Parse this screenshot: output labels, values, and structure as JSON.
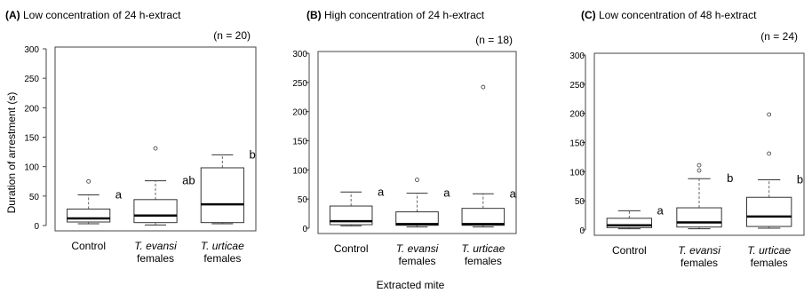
{
  "figure": {
    "ylabel": "Duration of arrestment (s)",
    "xlabel": "Extracted mite"
  },
  "chart_data": [
    {
      "type": "box",
      "panel_letter": "(A)",
      "title": "Low concentration of 24 h-extract",
      "n_label": "(n = 20)",
      "ylim": [
        0,
        300
      ],
      "yticks": [
        0,
        50,
        100,
        150,
        200,
        250,
        300
      ],
      "categories": [
        {
          "lines": [
            "Control"
          ],
          "italic": false
        },
        {
          "lines": [
            "T. evansi",
            "females"
          ],
          "italic": true
        },
        {
          "lines": [
            "T. urticae",
            "females"
          ],
          "italic": true
        }
      ],
      "boxes": [
        {
          "min": 3,
          "q1": 6,
          "median": 12,
          "q3": 28,
          "max": 52,
          "outliers": [
            75
          ],
          "letter": "a"
        },
        {
          "min": 1,
          "q1": 5,
          "median": 17,
          "q3": 44,
          "max": 76,
          "outliers": [
            131
          ],
          "letter": "ab"
        },
        {
          "min": 3,
          "q1": 5,
          "median": 36,
          "q3": 98,
          "max": 120,
          "outliers": [],
          "letter": "b"
        }
      ]
    },
    {
      "type": "box",
      "panel_letter": "(B)",
      "title": "High concentration of 24 h-extract",
      "n_label": "(n = 18)",
      "ylim": [
        0,
        300
      ],
      "yticks": [
        0,
        50,
        100,
        150,
        200,
        250,
        300
      ],
      "categories": [
        {
          "lines": [
            "Control"
          ],
          "italic": false
        },
        {
          "lines": [
            "T. evansi",
            "females"
          ],
          "italic": true
        },
        {
          "lines": [
            "T. urticae",
            "females"
          ],
          "italic": true
        }
      ],
      "boxes": [
        {
          "min": 4,
          "q1": 6,
          "median": 12,
          "q3": 38,
          "max": 62,
          "outliers": [],
          "letter": "a"
        },
        {
          "min": 2,
          "q1": 5,
          "median": 7,
          "q3": 28,
          "max": 60,
          "outliers": [
            83
          ],
          "letter": "a"
        },
        {
          "min": 2,
          "q1": 5,
          "median": 7,
          "q3": 34,
          "max": 59,
          "outliers": [
            242
          ],
          "letter": "a"
        }
      ]
    },
    {
      "type": "box",
      "panel_letter": "(C)",
      "title": "Low concentration of 48 h-extract",
      "n_label": "(n = 24)",
      "ylim": [
        0,
        300
      ],
      "yticks": [
        0,
        50,
        100,
        150,
        200,
        250,
        300
      ],
      "categories": [
        {
          "lines": [
            "Control"
          ],
          "italic": false
        },
        {
          "lines": [
            "T. evansi",
            "females"
          ],
          "italic": true
        },
        {
          "lines": [
            "T. urticae",
            "females"
          ],
          "italic": true
        }
      ],
      "boxes": [
        {
          "min": 2,
          "q1": 4,
          "median": 8,
          "q3": 20,
          "max": 33,
          "outliers": [],
          "letter": "a"
        },
        {
          "min": 2,
          "q1": 5,
          "median": 13,
          "q3": 38,
          "max": 88,
          "outliers": [
            102,
            111
          ],
          "letter": "b"
        },
        {
          "min": 3,
          "q1": 6,
          "median": 23,
          "q3": 56,
          "max": 86,
          "outliers": [
            131,
            198
          ],
          "letter": "b"
        }
      ]
    }
  ]
}
